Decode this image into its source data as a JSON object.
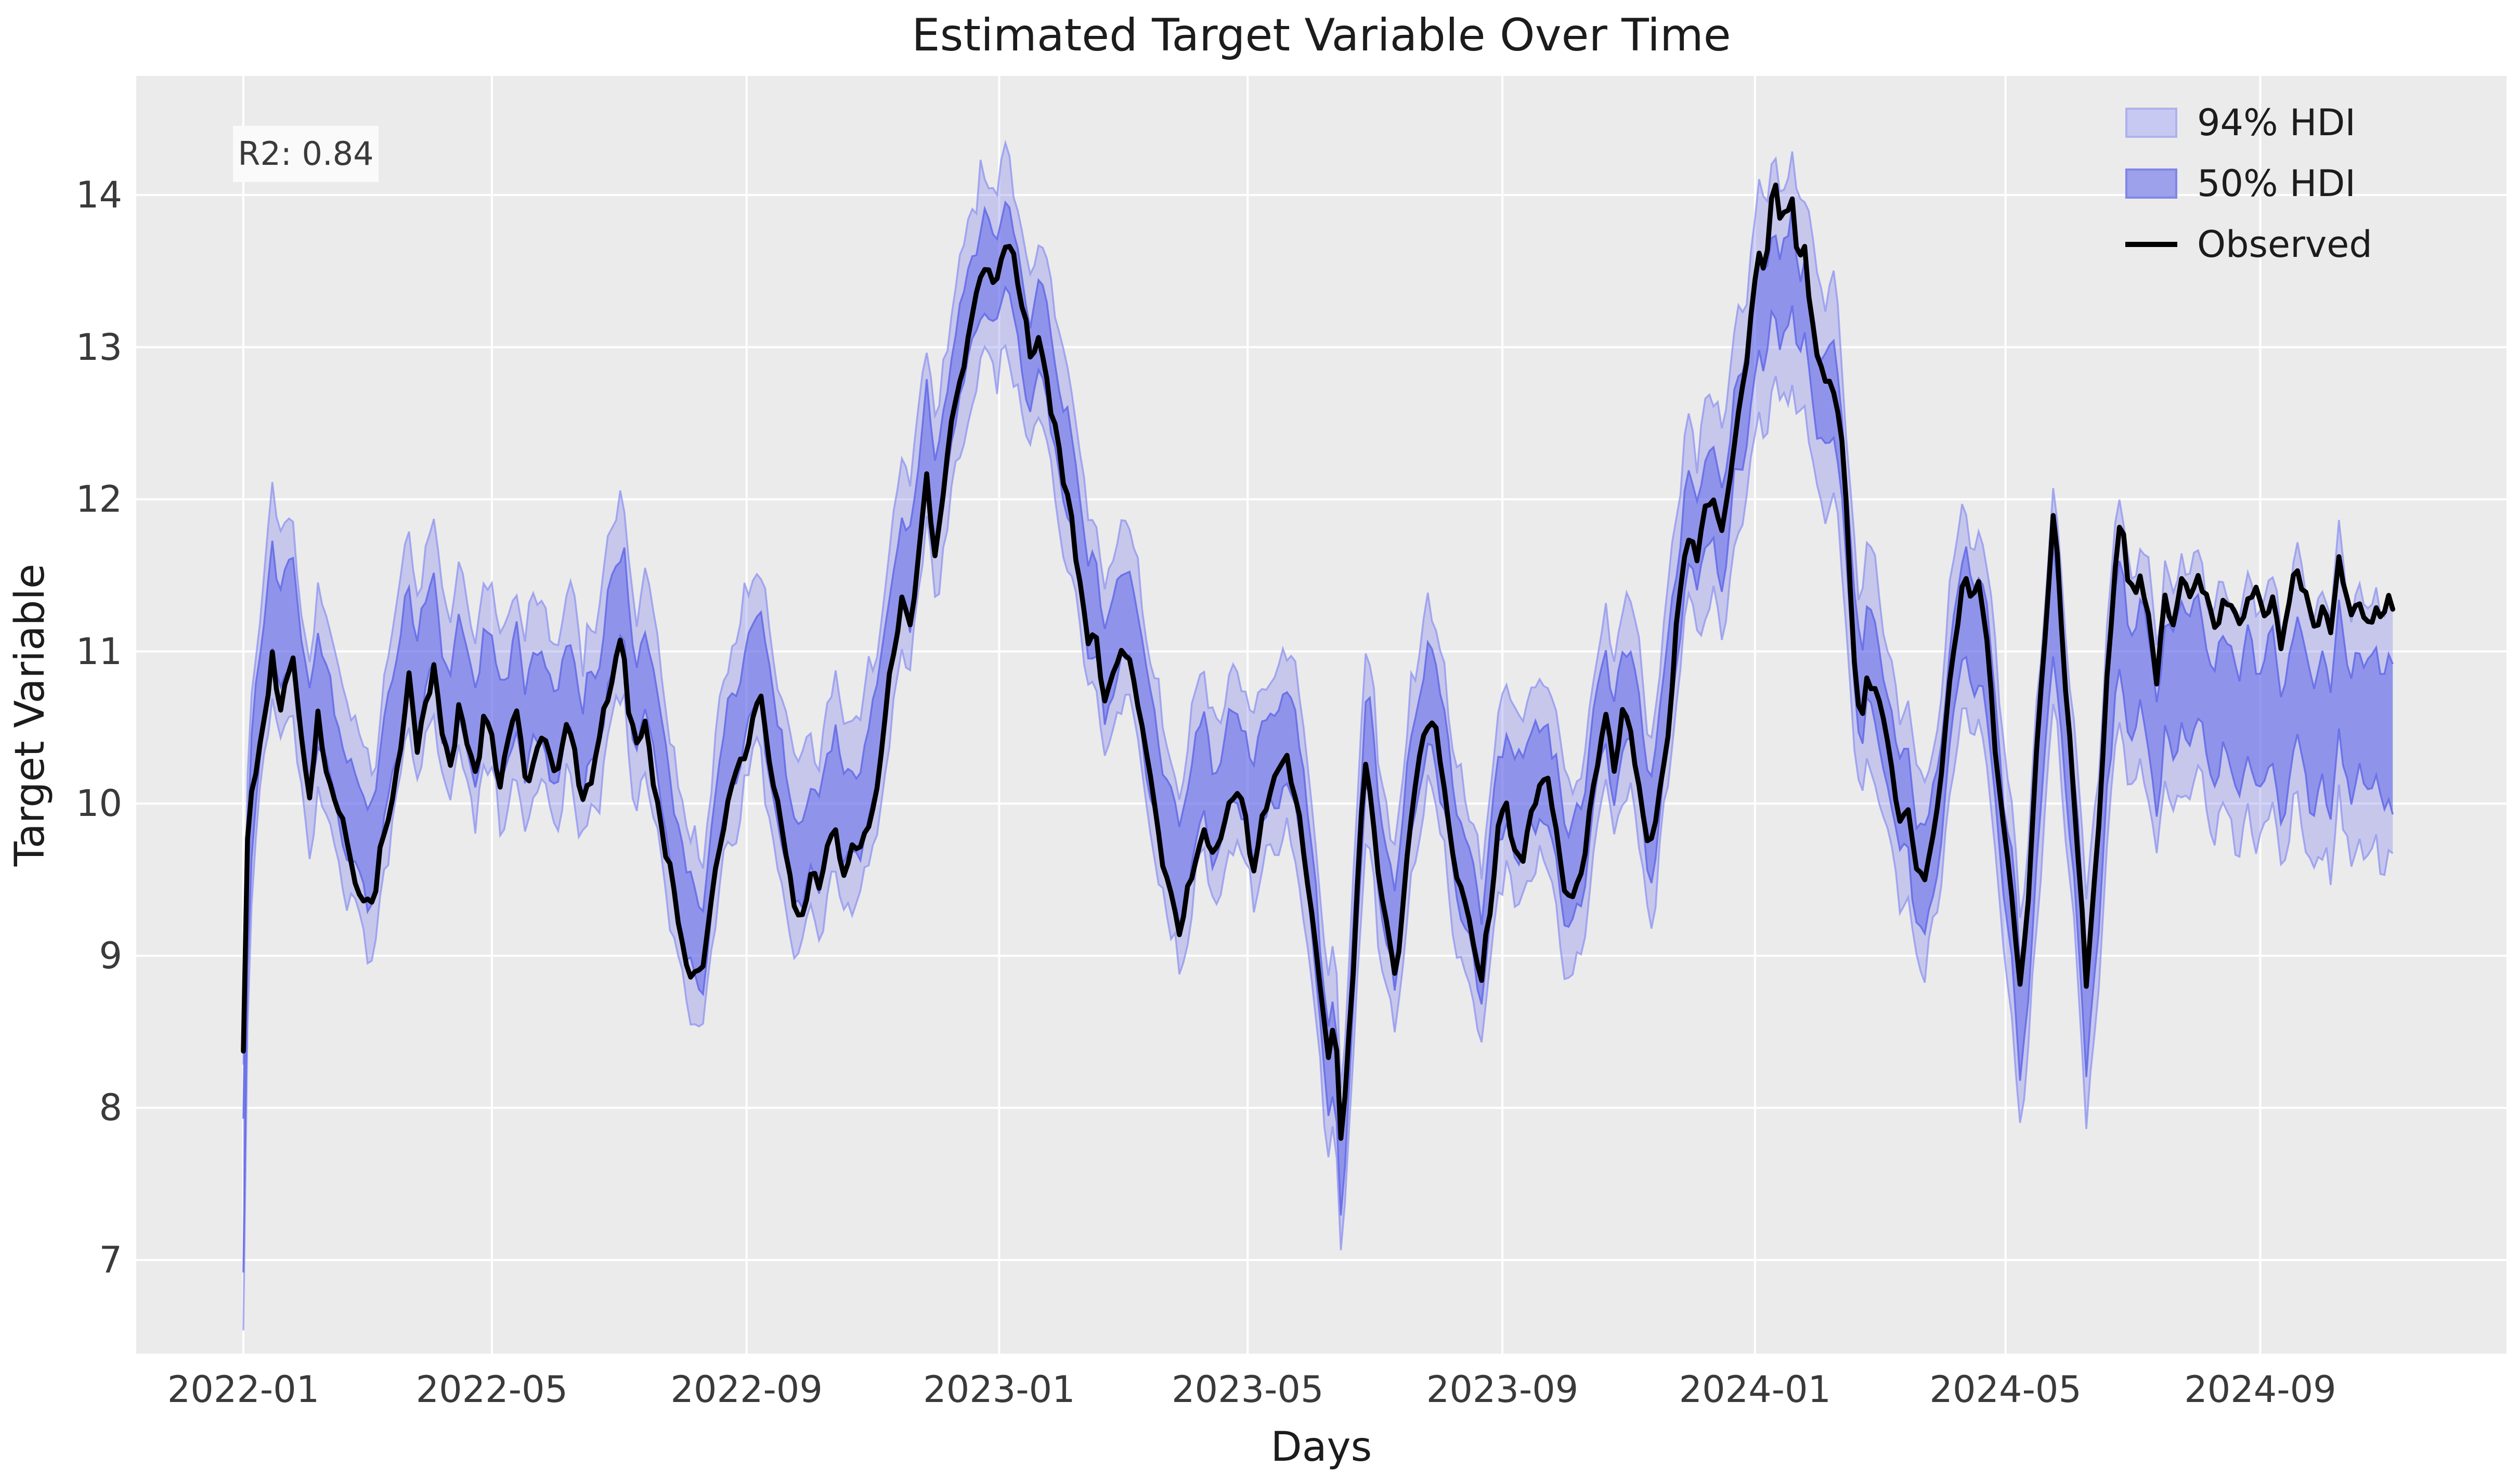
{
  "title": "Estimated Target Variable Over Time",
  "annotation": {
    "r2_label": "R2: 0.84"
  },
  "axes": {
    "xlabel": "Days",
    "ylabel": "Target Variable",
    "ytick_labels": [
      "7",
      "8",
      "9",
      "10",
      "11",
      "12",
      "13",
      "14"
    ],
    "xtick_labels": [
      "2022-01",
      "2022-05",
      "2022-09",
      "2023-01",
      "2023-05",
      "2023-09",
      "2024-01",
      "2024-05",
      "2024-09"
    ]
  },
  "legend": {
    "items": [
      {
        "label": "94% HDI",
        "type": "patch"
      },
      {
        "label": "50% HDI",
        "type": "patch"
      },
      {
        "label": "Observed",
        "type": "line"
      }
    ]
  },
  "colors": {
    "figure_bg": "#ffffff",
    "plot_bg": "#ebebeb",
    "grid": "#ffffff",
    "observed": "#000000",
    "hdi94_fill": "rgba(123,129,236,0.33)",
    "hdi94_edge": "rgba(142,147,240,0.75)",
    "hdi50_fill": "rgba(99,105,233,0.55)",
    "hdi50_edge": "rgba(98,104,232,0.85)",
    "tick_text": "#3a3a3a",
    "title_text": "#1c1c1c",
    "r2_box_bg": "#fafafa"
  },
  "chart_data": {
    "type": "line",
    "title": "Estimated Target Variable Over Time",
    "xlabel": "Days",
    "ylabel": "Target Variable",
    "x_unit": "days since 2022-01-01",
    "x_range_days": [
      0,
      1038
    ],
    "ylim": [
      6.35,
      14.82
    ],
    "yticks": [
      7,
      8,
      9,
      10,
      11,
      12,
      13,
      14
    ],
    "xticks": [
      {
        "label": "2022-01",
        "day": 0
      },
      {
        "label": "2022-05",
        "day": 120
      },
      {
        "label": "2022-09",
        "day": 243
      },
      {
        "label": "2023-01",
        "day": 365
      },
      {
        "label": "2023-05",
        "day": 485
      },
      {
        "label": "2023-09",
        "day": 608
      },
      {
        "label": "2024-01",
        "day": 730
      },
      {
        "label": "2024-05",
        "day": 851
      },
      {
        "label": "2024-09",
        "day": 974
      }
    ],
    "grid": true,
    "legend_position": "upper right",
    "r2": 0.84,
    "observed_keyframes": [
      [
        0,
        8.43
      ],
      [
        1,
        9.3
      ],
      [
        2,
        9.8
      ],
      [
        4,
        10.1
      ],
      [
        7,
        10.25
      ],
      [
        10,
        10.5
      ],
      [
        14,
        11.0
      ],
      [
        17,
        10.65
      ],
      [
        20,
        10.8
      ],
      [
        24,
        10.9
      ],
      [
        28,
        10.45
      ],
      [
        32,
        10.1
      ],
      [
        36,
        10.55
      ],
      [
        40,
        10.25
      ],
      [
        45,
        9.95
      ],
      [
        50,
        9.75
      ],
      [
        55,
        9.5
      ],
      [
        60,
        9.3
      ],
      [
        64,
        9.45
      ],
      [
        68,
        9.85
      ],
      [
        72,
        10.1
      ],
      [
        76,
        10.35
      ],
      [
        80,
        10.85
      ],
      [
        84,
        10.35
      ],
      [
        88,
        10.6
      ],
      [
        92,
        10.85
      ],
      [
        96,
        10.4
      ],
      [
        100,
        10.2
      ],
      [
        104,
        10.6
      ],
      [
        108,
        10.35
      ],
      [
        112,
        10.2
      ],
      [
        116,
        10.55
      ],
      [
        120,
        10.4
      ],
      [
        124,
        10.15
      ],
      [
        128,
        10.35
      ],
      [
        132,
        10.6
      ],
      [
        136,
        10.15
      ],
      [
        140,
        10.3
      ],
      [
        144,
        10.5
      ],
      [
        148,
        10.3
      ],
      [
        152,
        10.2
      ],
      [
        156,
        10.45
      ],
      [
        160,
        10.3
      ],
      [
        164,
        10.0
      ],
      [
        168,
        10.2
      ],
      [
        172,
        10.4
      ],
      [
        176,
        10.7
      ],
      [
        180,
        11.0
      ],
      [
        183,
        11.05
      ],
      [
        186,
        10.6
      ],
      [
        190,
        10.35
      ],
      [
        194,
        10.5
      ],
      [
        198,
        10.2
      ],
      [
        202,
        9.85
      ],
      [
        206,
        9.6
      ],
      [
        210,
        9.2
      ],
      [
        214,
        8.95
      ],
      [
        218,
        8.9
      ],
      [
        222,
        8.85
      ],
      [
        226,
        9.3
      ],
      [
        230,
        9.75
      ],
      [
        234,
        10.05
      ],
      [
        238,
        10.2
      ],
      [
        242,
        10.35
      ],
      [
        246,
        10.55
      ],
      [
        250,
        10.65
      ],
      [
        254,
        10.3
      ],
      [
        258,
        9.95
      ],
      [
        262,
        9.6
      ],
      [
        266,
        9.35
      ],
      [
        270,
        9.25
      ],
      [
        274,
        9.6
      ],
      [
        278,
        9.5
      ],
      [
        282,
        9.75
      ],
      [
        286,
        9.85
      ],
      [
        290,
        9.6
      ],
      [
        294,
        9.7
      ],
      [
        298,
        9.75
      ],
      [
        302,
        9.9
      ],
      [
        306,
        10.15
      ],
      [
        310,
        10.6
      ],
      [
        314,
        11.0
      ],
      [
        318,
        11.3
      ],
      [
        322,
        11.15
      ],
      [
        326,
        11.6
      ],
      [
        330,
        12.1
      ],
      [
        334,
        11.7
      ],
      [
        338,
        12.0
      ],
      [
        342,
        12.5
      ],
      [
        346,
        12.8
      ],
      [
        350,
        13.1
      ],
      [
        354,
        13.35
      ],
      [
        357,
        13.6
      ],
      [
        360,
        13.5
      ],
      [
        363,
        13.45
      ],
      [
        366,
        13.6
      ],
      [
        369,
        13.68
      ],
      [
        372,
        13.55
      ],
      [
        376,
        13.25
      ],
      [
        380,
        12.95
      ],
      [
        384,
        13.05
      ],
      [
        388,
        12.8
      ],
      [
        392,
        12.45
      ],
      [
        396,
        12.1
      ],
      [
        400,
        11.85
      ],
      [
        404,
        11.5
      ],
      [
        408,
        11.1
      ],
      [
        412,
        11.05
      ],
      [
        416,
        10.65
      ],
      [
        420,
        10.8
      ],
      [
        424,
        11.0
      ],
      [
        428,
        10.95
      ],
      [
        432,
        10.7
      ],
      [
        436,
        10.3
      ],
      [
        440,
        9.95
      ],
      [
        444,
        9.6
      ],
      [
        448,
        9.4
      ],
      [
        452,
        9.2
      ],
      [
        456,
        9.4
      ],
      [
        460,
        9.7
      ],
      [
        464,
        9.9
      ],
      [
        468,
        9.65
      ],
      [
        472,
        9.8
      ],
      [
        476,
        10.05
      ],
      [
        480,
        10.1
      ],
      [
        484,
        9.9
      ],
      [
        488,
        9.6
      ],
      [
        492,
        9.85
      ],
      [
        496,
        10.1
      ],
      [
        500,
        10.2
      ],
      [
        504,
        10.3
      ],
      [
        508,
        10.1
      ],
      [
        512,
        9.7
      ],
      [
        516,
        9.3
      ],
      [
        520,
        8.8
      ],
      [
        524,
        8.35
      ],
      [
        527,
        8.6
      ],
      [
        530,
        7.8
      ],
      [
        533,
        8.2
      ],
      [
        536,
        8.9
      ],
      [
        539,
        9.8
      ],
      [
        542,
        10.3
      ],
      [
        545,
        10.05
      ],
      [
        548,
        9.6
      ],
      [
        552,
        9.2
      ],
      [
        556,
        8.9
      ],
      [
        560,
        9.3
      ],
      [
        564,
        9.9
      ],
      [
        568,
        10.25
      ],
      [
        572,
        10.5
      ],
      [
        575,
        10.55
      ],
      [
        578,
        10.2
      ],
      [
        582,
        9.9
      ],
      [
        586,
        9.55
      ],
      [
        590,
        9.3
      ],
      [
        594,
        9.1
      ],
      [
        598,
        8.85
      ],
      [
        602,
        9.3
      ],
      [
        606,
        9.85
      ],
      [
        610,
        10.0
      ],
      [
        614,
        9.75
      ],
      [
        618,
        9.65
      ],
      [
        622,
        9.9
      ],
      [
        626,
        10.05
      ],
      [
        630,
        10.1
      ],
      [
        634,
        9.85
      ],
      [
        638,
        9.4
      ],
      [
        642,
        9.3
      ],
      [
        646,
        9.5
      ],
      [
        650,
        9.95
      ],
      [
        654,
        10.3
      ],
      [
        658,
        10.55
      ],
      [
        662,
        10.25
      ],
      [
        666,
        10.6
      ],
      [
        670,
        10.45
      ],
      [
        674,
        10.2
      ],
      [
        678,
        9.8
      ],
      [
        681,
        9.7
      ],
      [
        684,
        10.1
      ],
      [
        688,
        10.5
      ],
      [
        692,
        11.2
      ],
      [
        696,
        11.6
      ],
      [
        699,
        11.75
      ],
      [
        702,
        11.55
      ],
      [
        706,
        11.9
      ],
      [
        710,
        12.05
      ],
      [
        714,
        11.85
      ],
      [
        718,
        12.2
      ],
      [
        722,
        12.6
      ],
      [
        726,
        12.95
      ],
      [
        729,
        13.3
      ],
      [
        732,
        13.65
      ],
      [
        735,
        13.5
      ],
      [
        739,
        14.15
      ],
      [
        742,
        13.8
      ],
      [
        745,
        13.85
      ],
      [
        748,
        14.0
      ],
      [
        751,
        13.55
      ],
      [
        754,
        13.65
      ],
      [
        757,
        13.3
      ],
      [
        760,
        12.95
      ],
      [
        764,
        12.7
      ],
      [
        768,
        12.75
      ],
      [
        772,
        12.3
      ],
      [
        775,
        11.7
      ],
      [
        778,
        11.0
      ],
      [
        781,
        10.5
      ],
      [
        784,
        10.85
      ],
      [
        788,
        10.7
      ],
      [
        792,
        10.5
      ],
      [
        796,
        10.2
      ],
      [
        800,
        9.9
      ],
      [
        804,
        10.0
      ],
      [
        808,
        9.6
      ],
      [
        812,
        9.5
      ],
      [
        816,
        9.8
      ],
      [
        820,
        10.25
      ],
      [
        824,
        10.8
      ],
      [
        828,
        11.2
      ],
      [
        831,
        11.55
      ],
      [
        834,
        11.3
      ],
      [
        838,
        11.45
      ],
      [
        842,
        11.0
      ],
      [
        846,
        10.4
      ],
      [
        850,
        9.9
      ],
      [
        854,
        9.4
      ],
      [
        858,
        8.75
      ],
      [
        862,
        9.35
      ],
      [
        866,
        10.3
      ],
      [
        870,
        11.1
      ],
      [
        874,
        11.9
      ],
      [
        877,
        11.4
      ],
      [
        880,
        10.8
      ],
      [
        884,
        10.1
      ],
      [
        887,
        9.5
      ],
      [
        890,
        8.8
      ],
      [
        893,
        9.35
      ],
      [
        896,
        9.9
      ],
      [
        900,
        10.8
      ],
      [
        904,
        11.6
      ],
      [
        907,
        12.0
      ],
      [
        910,
        11.5
      ],
      [
        913,
        11.3
      ],
      [
        916,
        11.5
      ],
      [
        920,
        11.25
      ],
      [
        924,
        10.8
      ],
      [
        928,
        11.35
      ],
      [
        932,
        11.2
      ],
      [
        936,
        11.45
      ],
      [
        940,
        11.3
      ],
      [
        944,
        11.55
      ],
      [
        948,
        11.3
      ],
      [
        952,
        11.15
      ],
      [
        956,
        11.4
      ],
      [
        960,
        11.3
      ],
      [
        964,
        11.2
      ],
      [
        968,
        11.4
      ],
      [
        972,
        11.35
      ],
      [
        976,
        11.2
      ],
      [
        980,
        11.35
      ],
      [
        984,
        11.1
      ],
      [
        988,
        11.3
      ],
      [
        992,
        11.55
      ],
      [
        996,
        11.3
      ],
      [
        1000,
        11.15
      ],
      [
        1004,
        11.3
      ],
      [
        1008,
        11.2
      ],
      [
        1012,
        11.7
      ],
      [
        1015,
        11.4
      ],
      [
        1018,
        11.25
      ],
      [
        1021,
        11.45
      ],
      [
        1024,
        11.3
      ],
      [
        1027,
        11.2
      ],
      [
        1030,
        11.35
      ],
      [
        1033,
        11.25
      ],
      [
        1036,
        11.4
      ],
      [
        1038,
        11.3
      ]
    ],
    "band_center_offset_keyframes": [
      [
        0,
        -0.95
      ],
      [
        2,
        -0.4
      ],
      [
        5,
        0.15
      ],
      [
        10,
        0.35
      ],
      [
        40,
        0.3
      ],
      [
        80,
        0.35
      ],
      [
        120,
        0.3
      ],
      [
        160,
        0.3
      ],
      [
        200,
        0.3
      ],
      [
        240,
        0.3
      ],
      [
        280,
        0.25
      ],
      [
        310,
        0.3
      ],
      [
        340,
        0.15
      ],
      [
        360,
        0.0
      ],
      [
        370,
        -0.1
      ],
      [
        385,
        0.1
      ],
      [
        400,
        0.2
      ],
      [
        430,
        0.25
      ],
      [
        460,
        0.3
      ],
      [
        490,
        0.25
      ],
      [
        515,
        0.05
      ],
      [
        530,
        -0.1
      ],
      [
        545,
        0.1
      ],
      [
        560,
        0.2
      ],
      [
        580,
        0.2
      ],
      [
        600,
        0.2
      ],
      [
        630,
        0.2
      ],
      [
        660,
        0.2
      ],
      [
        685,
        0.15
      ],
      [
        700,
        0.1
      ],
      [
        715,
        0.0
      ],
      [
        730,
        -0.3
      ],
      [
        739,
        -0.55
      ],
      [
        750,
        -0.35
      ],
      [
        762,
        -0.15
      ],
      [
        775,
        0.0
      ],
      [
        790,
        0.1
      ],
      [
        805,
        0.05
      ],
      [
        820,
        -0.1
      ],
      [
        831,
        -0.3
      ],
      [
        845,
        -0.1
      ],
      [
        858,
        -0.15
      ],
      [
        874,
        -0.5
      ],
      [
        890,
        -0.2
      ],
      [
        907,
        -0.6
      ],
      [
        920,
        -0.45
      ],
      [
        935,
        -0.55
      ],
      [
        950,
        -0.65
      ],
      [
        965,
        -0.7
      ],
      [
        980,
        -0.72
      ],
      [
        995,
        -0.78
      ],
      [
        1010,
        -0.8
      ],
      [
        1025,
        -0.82
      ],
      [
        1038,
        -0.8
      ]
    ],
    "hdi94_halfwidth_keyframes": [
      [
        0,
        0.9
      ],
      [
        3,
        0.75
      ],
      [
        8,
        0.65
      ],
      [
        100,
        0.62
      ],
      [
        300,
        0.6
      ],
      [
        360,
        0.62
      ],
      [
        420,
        0.6
      ],
      [
        520,
        0.58
      ],
      [
        600,
        0.6
      ],
      [
        700,
        0.62
      ],
      [
        739,
        0.75
      ],
      [
        800,
        0.62
      ],
      [
        860,
        0.68
      ],
      [
        920,
        0.72
      ],
      [
        980,
        0.78
      ],
      [
        1038,
        0.85
      ]
    ],
    "hdi50_halfwidth_keyframes": [
      [
        0,
        0.5
      ],
      [
        3,
        0.4
      ],
      [
        8,
        0.33
      ],
      [
        100,
        0.31
      ],
      [
        300,
        0.3
      ],
      [
        360,
        0.31
      ],
      [
        420,
        0.3
      ],
      [
        520,
        0.29
      ],
      [
        600,
        0.3
      ],
      [
        700,
        0.31
      ],
      [
        739,
        0.28
      ],
      [
        800,
        0.31
      ],
      [
        860,
        0.34
      ],
      [
        920,
        0.37
      ],
      [
        980,
        0.4
      ],
      [
        1038,
        0.44
      ]
    ],
    "noise": {
      "seed": 11,
      "observed_amp": 0.09,
      "observed_period": 3.0,
      "center_amp": 0.13,
      "center_period": 4.5,
      "edge_amp": 0.12,
      "edge_period": 2.6,
      "sample_step_days": 2
    }
  }
}
